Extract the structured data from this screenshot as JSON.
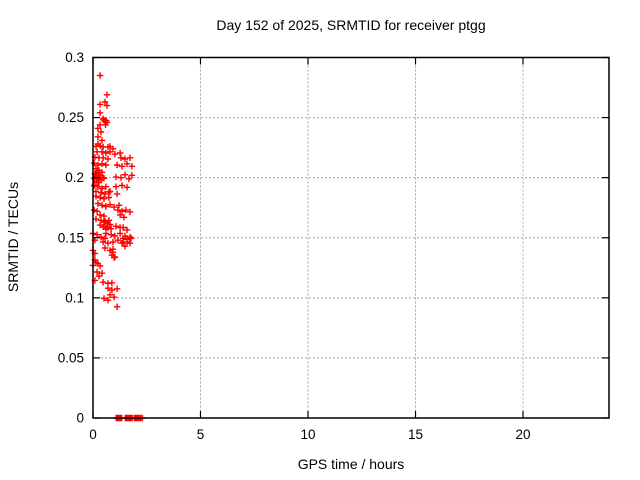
{
  "chart_data": {
    "type": "scatter",
    "title": "Day 152 of 2025, SRMTID for receiver ptgg",
    "xlabel": "GPS time / hours",
    "ylabel": "SRMTID / TECUs",
    "xlim": [
      0,
      24
    ],
    "ylim": [
      0,
      0.3
    ],
    "xticks": [
      "0",
      "5",
      "10",
      "15",
      "20"
    ],
    "yticks": [
      "0",
      "0.05",
      "0.1",
      "0.15",
      "0.2",
      "0.25",
      "0.3"
    ],
    "grid": true,
    "legend_position": "none",
    "marker": "plus",
    "marker_color": "#ff0000",
    "grid_color": "#a8a8a8",
    "border_color": "#000000",
    "series": [
      {
        "name": "SRMTID",
        "points": [
          [
            0.33,
            0.285
          ],
          [
            0.65,
            0.269
          ],
          [
            0.56,
            0.263
          ],
          [
            0.33,
            0.261
          ],
          [
            0.65,
            0.26
          ],
          [
            0.33,
            0.254
          ],
          [
            0.47,
            0.249
          ],
          [
            0.51,
            0.248
          ],
          [
            0.62,
            0.2475
          ],
          [
            0.56,
            0.247
          ],
          [
            0.6,
            0.246
          ],
          [
            0.65,
            0.246
          ],
          [
            0.58,
            0.244
          ],
          [
            0.33,
            0.244
          ],
          [
            0.23,
            0.241
          ],
          [
            0.37,
            0.238
          ],
          [
            0.23,
            0.234
          ],
          [
            0.42,
            0.231
          ],
          [
            0.23,
            0.228
          ],
          [
            0.79,
            0.226
          ],
          [
            0.14,
            0.226
          ],
          [
            0.33,
            0.2265
          ],
          [
            0.47,
            0.2255
          ],
          [
            0.7,
            0.2255
          ],
          [
            0.93,
            0.224
          ],
          [
            0.19,
            0.2215
          ],
          [
            0.42,
            0.2215
          ],
          [
            0.6,
            0.2205
          ],
          [
            0.79,
            0.2215
          ],
          [
            1.02,
            0.2195
          ],
          [
            1.26,
            0.2205
          ],
          [
            0.09,
            0.217
          ],
          [
            0.28,
            0.2165
          ],
          [
            0.47,
            0.2165
          ],
          [
            0.7,
            0.2155
          ],
          [
            1.3,
            0.2165
          ],
          [
            1.49,
            0.2155
          ],
          [
            1.72,
            0.2165
          ],
          [
            0.05,
            0.212
          ],
          [
            0.23,
            0.2105
          ],
          [
            0.42,
            0.2115
          ],
          [
            0.6,
            0.2105
          ],
          [
            1.12,
            0.2105
          ],
          [
            1.35,
            0.2095
          ],
          [
            1.58,
            0.2115
          ],
          [
            1.81,
            0.2095
          ],
          [
            0.14,
            0.2075
          ],
          [
            0.28,
            0.206
          ],
          [
            0.21,
            0.2045
          ],
          [
            0.42,
            0.2045
          ],
          [
            0.09,
            0.2035
          ],
          [
            0.16,
            0.2025
          ],
          [
            0.23,
            0.2025
          ],
          [
            0.33,
            0.2015
          ],
          [
            0.12,
            0.2005
          ],
          [
            0.47,
            0.2
          ],
          [
            0.05,
            0.1995
          ],
          [
            0.19,
            0.199
          ],
          [
            0.51,
            0.1995
          ],
          [
            0.26,
            0.1985
          ],
          [
            0.37,
            0.198
          ],
          [
            0.14,
            0.1965
          ],
          [
            0.28,
            0.196
          ],
          [
            1.07,
            0.2005
          ],
          [
            1.3,
            0.2
          ],
          [
            1.49,
            0.2025
          ],
          [
            1.67,
            0.199
          ],
          [
            1.81,
            0.202
          ],
          [
            0.05,
            0.1935
          ],
          [
            0.23,
            0.1925
          ],
          [
            0.42,
            0.191
          ],
          [
            0.6,
            0.1925
          ],
          [
            0.79,
            0.1885
          ],
          [
            1.07,
            0.1925
          ],
          [
            1.35,
            0.1935
          ],
          [
            1.58,
            0.192
          ],
          [
            0.14,
            0.1885
          ],
          [
            0.37,
            0.1875
          ],
          [
            0.56,
            0.1865
          ],
          [
            0.74,
            0.188
          ],
          [
            1.12,
            0.1865
          ],
          [
            0.14,
            0.1845
          ],
          [
            0.33,
            0.1835
          ],
          [
            0.51,
            0.1825
          ],
          [
            0.74,
            0.1835
          ],
          [
            0.23,
            0.1785
          ],
          [
            0.42,
            0.177
          ],
          [
            0.6,
            0.176
          ],
          [
            0.79,
            0.1775
          ],
          [
            0.98,
            0.1755
          ],
          [
            1.21,
            0.177
          ],
          [
            0.05,
            0.173
          ],
          [
            0.19,
            0.172
          ],
          [
            1.16,
            0.173
          ],
          [
            1.35,
            0.172
          ],
          [
            1.53,
            0.173
          ],
          [
            1.72,
            0.1715
          ],
          [
            0.33,
            0.169
          ],
          [
            0.51,
            0.168
          ],
          [
            1.26,
            0.169
          ],
          [
            1.44,
            0.167
          ],
          [
            0.14,
            0.1655
          ],
          [
            0.37,
            0.1645
          ],
          [
            0.56,
            0.1635
          ],
          [
            0.74,
            0.1645
          ],
          [
            0.51,
            0.163
          ],
          [
            0.65,
            0.162
          ],
          [
            0.79,
            0.161
          ],
          [
            0.33,
            0.1605
          ],
          [
            0.56,
            0.1595
          ],
          [
            0.7,
            0.1585
          ],
          [
            0.84,
            0.1575
          ],
          [
            0.47,
            0.159
          ],
          [
            0.6,
            0.157
          ],
          [
            1.07,
            0.1595
          ],
          [
            1.26,
            0.1585
          ],
          [
            1.4,
            0.1585
          ],
          [
            1.58,
            0.1565
          ],
          [
            0,
            0.1535
          ],
          [
            0.19,
            0.1525
          ],
          [
            0.6,
            0.1535
          ],
          [
            0.84,
            0.1525
          ],
          [
            1.02,
            0.1515
          ],
          [
            1.26,
            0.1535
          ],
          [
            1.49,
            0.1515
          ],
          [
            1.72,
            0.1505
          ],
          [
            0.37,
            0.1505
          ],
          [
            0.56,
            0.1495
          ],
          [
            1.4,
            0.1495
          ],
          [
            1.58,
            0.1485
          ],
          [
            1.77,
            0.1495
          ],
          [
            0.09,
            0.148
          ],
          [
            0.47,
            0.1465
          ],
          [
            0.7,
            0.1455
          ],
          [
            0.93,
            0.1465
          ],
          [
            1.16,
            0.148
          ],
          [
            1.35,
            0.1455
          ],
          [
            1.58,
            0.1465
          ],
          [
            1.72,
            0.1455
          ],
          [
            1.4,
            0.1465
          ],
          [
            1.49,
            0.143
          ],
          [
            0.56,
            0.1415
          ],
          [
            0.79,
            0.1395
          ],
          [
            0.93,
            0.1405
          ],
          [
            0.93,
            0.138
          ],
          [
            1.02,
            0.134
          ],
          [
            0,
            0.1395
          ],
          [
            0.09,
            0.137
          ],
          [
            0.88,
            0.1355
          ],
          [
            0.98,
            0.1335
          ],
          [
            0.09,
            0.1315
          ],
          [
            0.14,
            0.1295
          ],
          [
            0.23,
            0.1285
          ],
          [
            0,
            0.127
          ],
          [
            0.33,
            0.1265
          ],
          [
            0.19,
            0.1215
          ],
          [
            0.42,
            0.1205
          ],
          [
            0.28,
            0.118
          ],
          [
            0.09,
            0.1145
          ],
          [
            0.47,
            0.113
          ],
          [
            0.7,
            0.112
          ],
          [
            0.88,
            0.1125
          ],
          [
            0.7,
            0.108
          ],
          [
            0.88,
            0.1065
          ],
          [
            1.12,
            0.1075
          ],
          [
            0.79,
            0.1025
          ],
          [
            0.98,
            0.1005
          ],
          [
            0.51,
            0.0995
          ],
          [
            0.7,
            0.098
          ],
          [
            1.12,
            0.0925
          ],
          [
            1.08,
            0
          ],
          [
            1.105,
            0
          ],
          [
            1.13,
            0
          ],
          [
            1.155,
            0
          ],
          [
            1.18,
            0
          ],
          [
            1.205,
            0
          ],
          [
            1.23,
            0
          ],
          [
            1.255,
            0
          ],
          [
            1.28,
            0
          ],
          [
            1.305,
            0
          ],
          [
            1.33,
            0
          ],
          [
            1.5,
            0
          ],
          [
            1.525,
            0
          ],
          [
            1.55,
            0
          ],
          [
            1.575,
            0
          ],
          [
            1.6,
            0
          ],
          [
            1.625,
            0
          ],
          [
            1.65,
            0
          ],
          [
            1.675,
            0
          ],
          [
            1.7,
            0
          ],
          [
            1.725,
            0
          ],
          [
            1.75,
            0
          ],
          [
            1.775,
            0
          ],
          [
            1.8,
            0
          ],
          [
            1.825,
            0
          ],
          [
            1.92,
            0
          ],
          [
            1.945,
            0
          ],
          [
            1.97,
            0
          ],
          [
            1.995,
            0
          ],
          [
            2.02,
            0
          ],
          [
            2.045,
            0
          ],
          [
            2.07,
            0
          ],
          [
            2.095,
            0
          ],
          [
            2.12,
            0
          ],
          [
            2.145,
            0
          ],
          [
            2.17,
            0
          ],
          [
            2.195,
            0
          ],
          [
            2.22,
            0
          ],
          [
            2.3,
            0
          ]
        ]
      }
    ]
  }
}
